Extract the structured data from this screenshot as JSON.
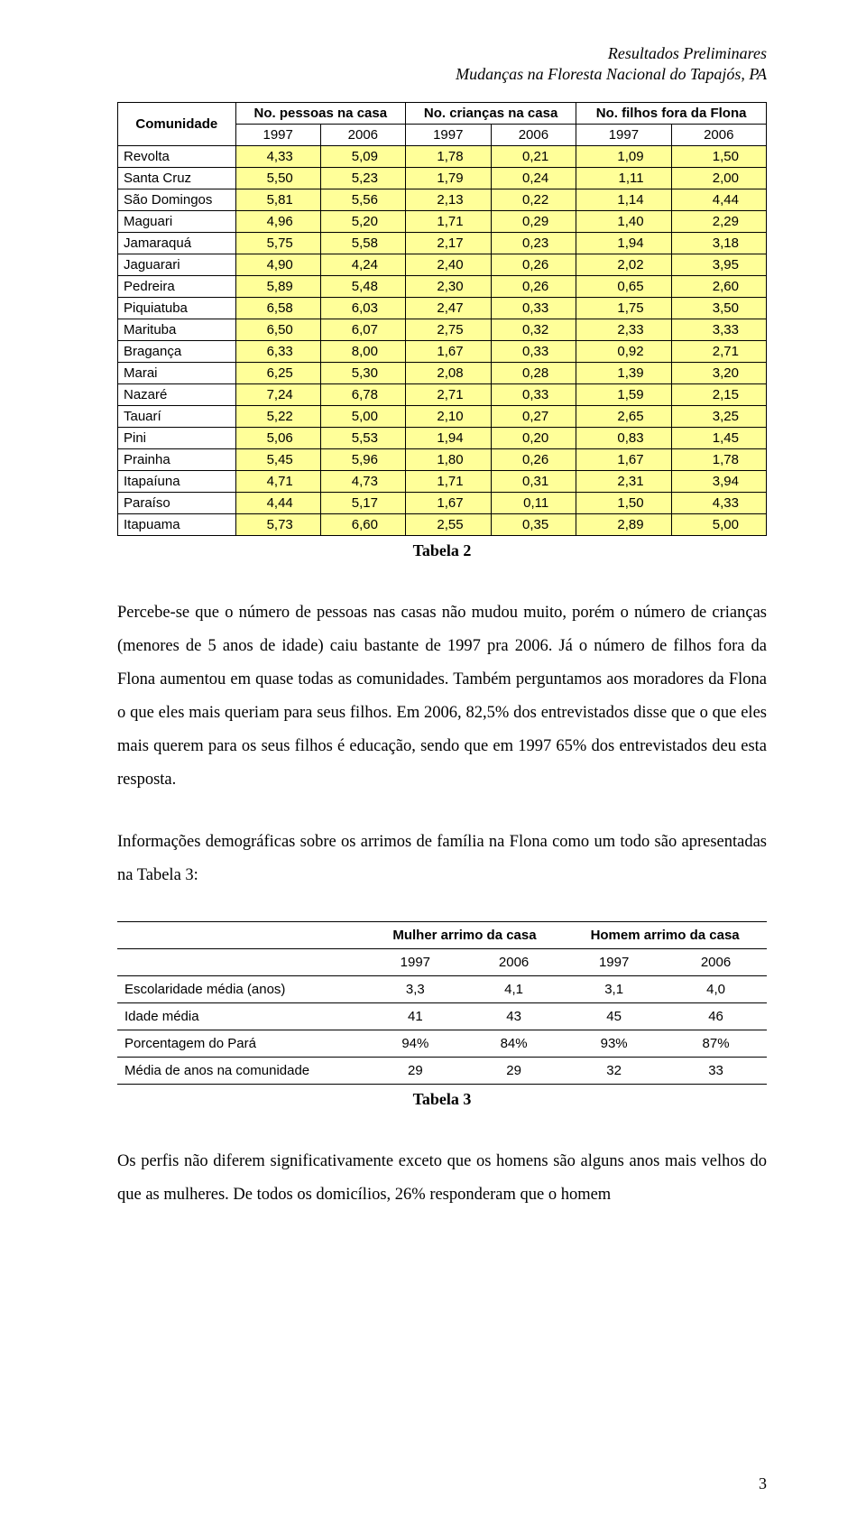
{
  "header": {
    "line1": "Resultados Preliminares",
    "line2": "Mudanças na Floresta Nacional do Tapajós, PA"
  },
  "table1": {
    "columns": {
      "comunidade": "Comunidade",
      "pessoas": "No. pessoas na casa",
      "criancas": "No. crianças na casa",
      "filhos": "No. filhos fora da Flona"
    },
    "years": [
      "1997",
      "2006",
      "1997",
      "2006",
      "1997",
      "2006"
    ],
    "highlight_color": "#ffff99",
    "border_color": "#000000",
    "font_family": "Arial",
    "header_fontsize": 15,
    "cell_fontsize": 15,
    "rows": [
      {
        "community": "Revolta",
        "vals": [
          "4,33",
          "5,09",
          "1,78",
          "0,21",
          "1,09",
          "1,50"
        ]
      },
      {
        "community": "Santa Cruz",
        "vals": [
          "5,50",
          "5,23",
          "1,79",
          "0,24",
          "1,11",
          "2,00"
        ]
      },
      {
        "community": "São Domingos",
        "vals": [
          "5,81",
          "5,56",
          "2,13",
          "0,22",
          "1,14",
          "4,44"
        ]
      },
      {
        "community": "Maguari",
        "vals": [
          "4,96",
          "5,20",
          "1,71",
          "0,29",
          "1,40",
          "2,29"
        ]
      },
      {
        "community": "Jamaraquá",
        "vals": [
          "5,75",
          "5,58",
          "2,17",
          "0,23",
          "1,94",
          "3,18"
        ]
      },
      {
        "community": "Jaguarari",
        "vals": [
          "4,90",
          "4,24",
          "2,40",
          "0,26",
          "2,02",
          "3,95"
        ]
      },
      {
        "community": "Pedreira",
        "vals": [
          "5,89",
          "5,48",
          "2,30",
          "0,26",
          "0,65",
          "2,60"
        ]
      },
      {
        "community": "Piquiatuba",
        "vals": [
          "6,58",
          "6,03",
          "2,47",
          "0,33",
          "1,75",
          "3,50"
        ]
      },
      {
        "community": "Marituba",
        "vals": [
          "6,50",
          "6,07",
          "2,75",
          "0,32",
          "2,33",
          "3,33"
        ]
      },
      {
        "community": "Bragança",
        "vals": [
          "6,33",
          "8,00",
          "1,67",
          "0,33",
          "0,92",
          "2,71"
        ]
      },
      {
        "community": "Marai",
        "vals": [
          "6,25",
          "5,30",
          "2,08",
          "0,28",
          "1,39",
          "3,20"
        ]
      },
      {
        "community": "Nazaré",
        "vals": [
          "7,24",
          "6,78",
          "2,71",
          "0,33",
          "1,59",
          "2,15"
        ]
      },
      {
        "community": "Tauarí",
        "vals": [
          "5,22",
          "5,00",
          "2,10",
          "0,27",
          "2,65",
          "3,25"
        ]
      },
      {
        "community": "Pini",
        "vals": [
          "5,06",
          "5,53",
          "1,94",
          "0,20",
          "0,83",
          "1,45"
        ]
      },
      {
        "community": "Prainha",
        "vals": [
          "5,45",
          "5,96",
          "1,80",
          "0,26",
          "1,67",
          "1,78"
        ]
      },
      {
        "community": "Itapaíuna",
        "vals": [
          "4,71",
          "4,73",
          "1,71",
          "0,31",
          "2,31",
          "3,94"
        ]
      },
      {
        "community": "Paraíso",
        "vals": [
          "4,44",
          "5,17",
          "1,67",
          "0,11",
          "1,50",
          "4,33"
        ]
      },
      {
        "community": "Itapuama",
        "vals": [
          "5,73",
          "6,60",
          "2,55",
          "0,35",
          "2,89",
          "5,00"
        ]
      }
    ],
    "caption": "Tabela 2"
  },
  "paragraph1": "Percebe-se que o número de pessoas nas casas não mudou muito, porém o número de crianças (menores de 5 anos de idade) caiu bastante de 1997 pra 2006. Já o número de filhos fora da Flona aumentou em quase todas as comunidades. Também perguntamos aos moradores da Flona o que eles mais queriam para seus filhos. Em 2006, 82,5% dos entrevistados disse que o que eles mais querem para os seus filhos é educação, sendo que em 1997 65% dos entrevistados deu esta resposta.",
  "paragraph2": "Informações demográficas sobre os arrimos de família na Flona como um todo são apresentadas na Tabela 3:",
  "table3": {
    "group_headers": [
      "Mulher arrimo da casa",
      "Homem arrimo da casa"
    ],
    "years": [
      "1997",
      "2006",
      "1997",
      "2006"
    ],
    "border_color": "#000000",
    "font_family": "Arial",
    "fontsize": 15,
    "rows": [
      {
        "label": "Escolaridade média (anos)",
        "vals": [
          "3,3",
          "4,1",
          "3,1",
          "4,0"
        ]
      },
      {
        "label": "Idade média",
        "vals": [
          "41",
          "43",
          "45",
          "46"
        ]
      },
      {
        "label": "Porcentagem do Pará",
        "vals": [
          "94%",
          "84%",
          "93%",
          "87%"
        ]
      },
      {
        "label": "Média de anos na comunidade",
        "vals": [
          "29",
          "29",
          "32",
          "33"
        ]
      }
    ],
    "caption": "Tabela 3"
  },
  "paragraph3": "Os perfis não diferem significativamente exceto que os homens são alguns anos mais velhos do que as mulheres. De todos os domicílios, 26% responderam que o homem",
  "page_number": "3"
}
